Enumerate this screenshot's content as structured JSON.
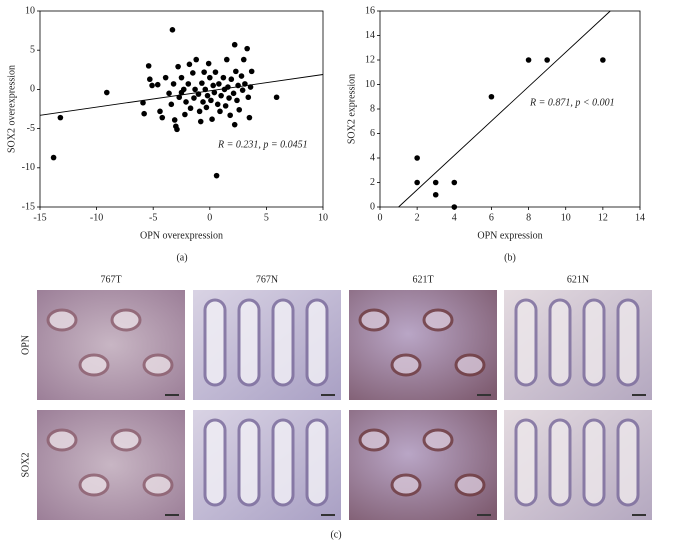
{
  "chart_data": [
    {
      "type": "scatter",
      "xlabel": "OPN overexpression",
      "ylabel": "SOX2 overexpression",
      "annotation": "R = 0.231, p = 0.0451",
      "x": [
        -13.8,
        -13.2,
        -9.1,
        -5.9,
        -5.8,
        -5.4,
        -5.3,
        -5.1,
        -4.6,
        -4.4,
        -4.2,
        -3.9,
        -3.6,
        -3.4,
        -3.3,
        -3.2,
        -3.1,
        -3.0,
        -2.9,
        -2.8,
        -2.7,
        -2.5,
        -2.5,
        -2.3,
        -2.2,
        -2.1,
        -1.9,
        -1.8,
        -1.7,
        -1.5,
        -1.4,
        -1.3,
        -1.2,
        -1.0,
        -0.9,
        -0.8,
        -0.7,
        -0.6,
        -0.5,
        -0.4,
        -0.3,
        -0.2,
        -0.1,
        0.0,
        0.1,
        0.2,
        0.3,
        0.4,
        0.5,
        0.6,
        0.7,
        0.8,
        0.9,
        1.0,
        1.2,
        1.3,
        1.4,
        1.5,
        1.6,
        1.7,
        1.8,
        1.9,
        2.1,
        2.2,
        2.3,
        2.4,
        2.5,
        2.6,
        2.8,
        2.9,
        3.0,
        3.1,
        3.3,
        3.4,
        3.5,
        3.6,
        3.7,
        2.2,
        5.9
      ],
      "y": [
        -8.7,
        -3.6,
        -0.4,
        -1.7,
        -3.1,
        3.0,
        1.3,
        0.5,
        0.6,
        -2.8,
        -3.6,
        1.5,
        -0.5,
        -1.9,
        7.6,
        0.7,
        -3.9,
        -4.7,
        -5.1,
        2.9,
        -1.0,
        1.5,
        -0.4,
        0.0,
        -3.2,
        -1.6,
        0.7,
        3.2,
        -2.4,
        2.1,
        -1.1,
        0.0,
        3.8,
        -0.6,
        -2.8,
        -4.1,
        0.8,
        -1.6,
        2.2,
        0.0,
        -2.3,
        -0.8,
        3.3,
        1.5,
        -1.4,
        -3.8,
        0.5,
        -0.4,
        2.2,
        -11.0,
        -1.9,
        0.7,
        -2.8,
        -0.8,
        1.5,
        0.0,
        -2.1,
        3.8,
        0.3,
        -1.1,
        -3.3,
        1.3,
        -0.5,
        -4.5,
        2.3,
        -1.4,
        0.5,
        -2.6,
        1.7,
        -0.1,
        3.8,
        0.7,
        5.2,
        -1.0,
        -3.6,
        0.3,
        2.3,
        5.7,
        -1.0
      ],
      "color": "#000000",
      "trend_line": {
        "x": [
          -15,
          10
        ],
        "y": [
          -3.3,
          1.9
        ]
      },
      "xlim": [
        -15,
        10
      ],
      "xticks": [
        -15,
        -10,
        -5,
        0,
        5,
        10
      ],
      "ylim": [
        -15,
        10
      ],
      "yticks": [
        -15,
        -10,
        -5,
        0,
        5,
        10
      ]
    },
    {
      "type": "scatter",
      "xlabel": "OPN expression",
      "ylabel": "SOX2 expression",
      "annotation": "R = 0.871, p < 0.001",
      "x": [
        2,
        2,
        3,
        3,
        4,
        4,
        6,
        8,
        9,
        12
      ],
      "y": [
        4,
        2,
        2,
        1,
        2,
        0,
        9,
        12,
        12,
        12
      ],
      "color": "#000000",
      "trend_line": {
        "x": [
          1,
          12.4
        ],
        "y": [
          0,
          16
        ]
      },
      "xlim": [
        0,
        14
      ],
      "xticks": [
        0,
        2,
        4,
        6,
        8,
        10,
        12,
        14
      ],
      "ylim": [
        0,
        16
      ],
      "yticks": [
        0,
        2,
        4,
        6,
        8,
        10,
        12,
        14,
        16
      ]
    }
  ],
  "panel_labels": [
    "(a)",
    "(b)",
    "(c)"
  ],
  "histology": {
    "columns": [
      "767T",
      "767N",
      "621T",
      "621N"
    ],
    "rows": [
      "OPN",
      "SOX2"
    ]
  }
}
